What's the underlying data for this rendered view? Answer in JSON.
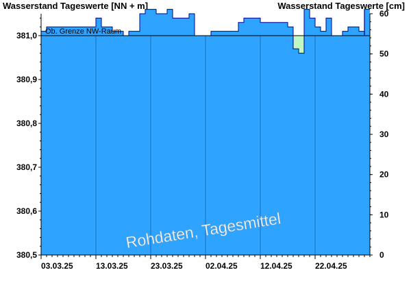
{
  "header": {
    "left_title": "Wasserstand Tageswerte [NN + m]",
    "right_title": "Wasserstand Tageswerte [cm]"
  },
  "chart_data": {
    "type": "area",
    "left_axis": {
      "label": "Wasserstand Tageswerte [NN + m]",
      "ylim": [
        380.5,
        381.05
      ],
      "ticks": [
        380.5,
        380.6,
        380.7,
        380.8,
        380.9,
        381.0
      ],
      "tick_labels": [
        "380,5",
        "380,6",
        "380,7",
        "380,8",
        "380,9",
        "381,0"
      ]
    },
    "right_axis": {
      "label": "Wasserstand Tageswerte [cm]",
      "ylim": [
        0,
        60
      ],
      "ticks": [
        0,
        10,
        20,
        30,
        40,
        50,
        60
      ],
      "tick_labels": [
        "0",
        "10",
        "20",
        "30",
        "40",
        "50",
        "60"
      ]
    },
    "x_axis": {
      "start_date": "2025-03-03",
      "total_days": 60,
      "major_labels": [
        "03.03.25",
        "13.03.25",
        "23.03.25",
        "02.04.25",
        "12.04.25",
        "22.04.25"
      ],
      "major_offsets": [
        0,
        10,
        20,
        30,
        40,
        50
      ]
    },
    "series": [
      {
        "color": "#2ea3ff",
        "edge_color": "#00008b",
        "values": [
          381.01,
          381.02,
          381.02,
          381.02,
          381.02,
          381.02,
          381.02,
          381.02,
          381.02,
          381.02,
          381.04,
          381.02,
          381.02,
          381.01,
          381.01,
          381.0,
          381.01,
          381.01,
          381.05,
          381.06,
          381.06,
          381.05,
          381.05,
          381.06,
          381.04,
          381.04,
          381.04,
          381.05,
          381.0,
          381.0,
          381.0,
          381.01,
          381.01,
          381.01,
          381.01,
          381.01,
          381.03,
          381.04,
          381.04,
          381.04,
          381.03,
          381.03,
          381.03,
          381.03,
          381.03,
          381.02,
          380.97,
          380.96,
          381.06,
          381.04,
          381.02,
          381.01,
          381.04,
          381.0,
          381.0,
          381.01,
          381.02,
          381.02,
          381.01,
          381.06
        ]
      }
    ],
    "reference_lines": [
      {
        "label": "Ob. Grenze NW-Raum",
        "value": 381.0,
        "color": "#000000"
      }
    ],
    "fill_below_reference_color": "#c1f7c1",
    "grid_x": "vertical lines at major ticks",
    "grid_y": false,
    "watermark": "Rohdaten, Tagesmittel"
  }
}
